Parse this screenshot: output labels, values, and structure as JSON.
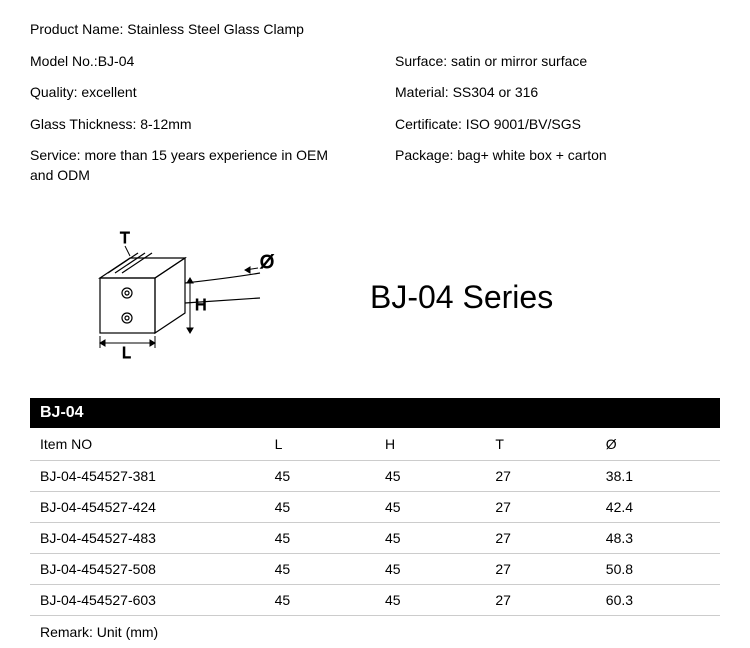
{
  "specs": {
    "left": [
      "Product Name: Stainless Steel Glass Clamp",
      "Model No.:BJ-04",
      "Quality: excellent",
      "Glass Thickness: 8-12mm",
      "Service: more than 15 years experience in OEM and ODM"
    ],
    "right": [
      "",
      "Surface: satin or mirror surface",
      "Material: SS304 or 316",
      "Certificate: ISO 9001/BV/SGS",
      "Package: bag+ white box + carton"
    ]
  },
  "diagram": {
    "labels": {
      "T": "T",
      "O": "Ø",
      "H": "H",
      "L": "L"
    },
    "colors": {
      "stroke": "#000000",
      "fill": "#ffffff"
    }
  },
  "series_title": "BJ-04 Series",
  "table": {
    "header": "BJ-04",
    "columns": [
      "Item NO",
      "L",
      "H",
      "T",
      "Ø"
    ],
    "rows": [
      [
        "BJ-04-454527-381",
        "45",
        "45",
        "27",
        "38.1"
      ],
      [
        "BJ-04-454527-424",
        "45",
        "45",
        "27",
        "42.4"
      ],
      [
        "BJ-04-454527-483",
        "45",
        "45",
        "27",
        "48.3"
      ],
      [
        "BJ-04-454527-508",
        "45",
        "45",
        "27",
        "50.8"
      ],
      [
        "BJ-04-454527-603",
        "45",
        "45",
        "27",
        "60.3"
      ]
    ],
    "remark": "Remark: Unit (mm)"
  },
  "styling": {
    "font_family": "Arial",
    "body_fontsize": 14,
    "series_fontsize": 32,
    "header_bg": "#000000",
    "header_fg": "#ffffff",
    "border_color": "#cccccc",
    "background": "#ffffff"
  }
}
